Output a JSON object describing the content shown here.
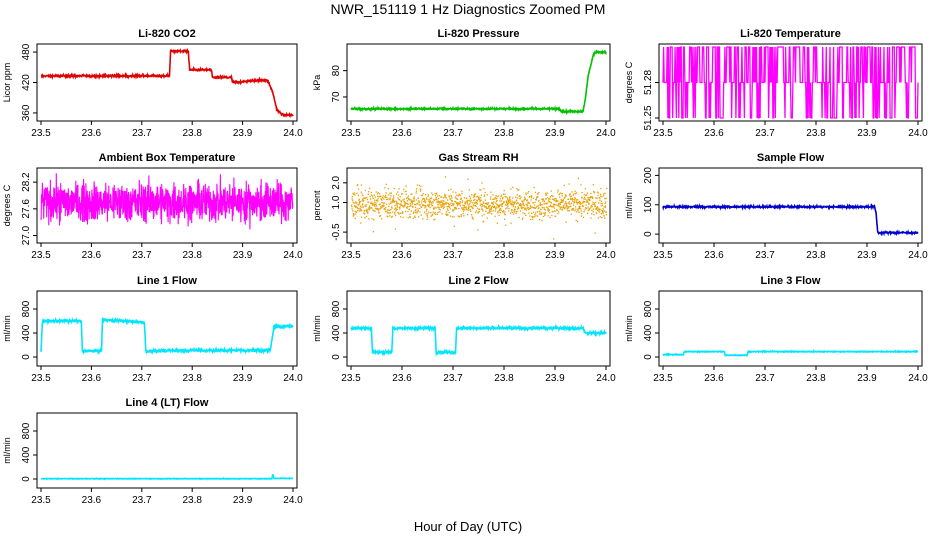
{
  "figure": {
    "title": "NWR_151119  1 Hz Diagnostics Zoomed PM",
    "xlabel": "Hour of Day (UTC)"
  },
  "chart_data": [
    {
      "type": "line",
      "title": "Li-820 CO2",
      "ylabel": "Licor ppm",
      "color": "#e00000",
      "xlim": [
        23.5,
        24.0
      ],
      "xticks": [
        "23.5",
        "23.6",
        "23.7",
        "23.8",
        "23.9",
        "24.0"
      ],
      "ylim": [
        350,
        490
      ],
      "yticks": [
        360,
        420,
        480
      ],
      "noise": 1,
      "x": [
        23.5,
        23.755,
        23.757,
        23.792,
        23.795,
        23.838,
        23.84,
        23.878,
        23.88,
        23.94,
        23.95,
        23.96,
        23.968,
        23.98,
        24.0
      ],
      "y": [
        433,
        433,
        482,
        482,
        445,
        445,
        430,
        430,
        420,
        425,
        424,
        400,
        366,
        356,
        356
      ]
    },
    {
      "type": "line",
      "title": "Li-820 Pressure",
      "ylabel": "kPa",
      "color": "#00c000",
      "xlim": [
        23.5,
        24.0
      ],
      "xticks": [
        "23.5",
        "23.6",
        "23.7",
        "23.8",
        "23.9",
        "24.0"
      ],
      "ylim": [
        62,
        89
      ],
      "yticks": [
        70,
        80
      ],
      "noise": 0.15,
      "x": [
        23.5,
        23.91,
        23.912,
        23.955,
        23.96,
        23.965,
        23.97,
        23.975,
        23.98,
        24.0
      ],
      "y": [
        65.5,
        65.5,
        64.5,
        64.5,
        70,
        78,
        82,
        86,
        87,
        87
      ]
    },
    {
      "type": "line",
      "title": "Li-820 Temperature",
      "ylabel": "degrees C",
      "color": "#ff00ff",
      "xlim": [
        23.5,
        24.0
      ],
      "xticks": [
        "23.5",
        "23.6",
        "23.7",
        "23.8",
        "23.9",
        "24.0"
      ],
      "ylim": [
        51.25,
        51.31
      ],
      "yticks": [
        51.25,
        51.28
      ],
      "style": "toggle",
      "levels": [
        51.25,
        51.28,
        51.31
      ]
    },
    {
      "type": "line",
      "title": "Ambient Box Temperature",
      "ylabel": "degrees C",
      "color": "#ff00ff",
      "xlim": [
        23.5,
        24.0
      ],
      "xticks": [
        "23.5",
        "23.6",
        "23.7",
        "23.8",
        "23.9",
        "24.0"
      ],
      "ylim": [
        26.9,
        28.45
      ],
      "yticks": [
        27.0,
        27.6,
        28.2
      ],
      "style": "noise",
      "center": 27.75,
      "spread": 0.22,
      "min": 26.95,
      "max": 28.4
    },
    {
      "type": "line",
      "title": "Gas Stream RH",
      "ylabel": "percent",
      "color": "#e8a000",
      "xlim": [
        23.5,
        24.0
      ],
      "xticks": [
        "23.5",
        "23.6",
        "23.7",
        "23.8",
        "23.9",
        "24.0"
      ],
      "ylim": [
        -0.9,
        2.6
      ],
      "yticks": [
        -0.5,
        1.0,
        2.0
      ],
      "ytick_labels": [
        "-0.5",
        "1.0",
        "2.0"
      ],
      "style": "dots",
      "center": 0.95,
      "spread": 0.35,
      "min": -0.9,
      "max": 2.4
    },
    {
      "type": "line",
      "title": "Sample Flow",
      "ylabel": "ml/min",
      "color": "#0000cc",
      "xlim": [
        23.5,
        24.0
      ],
      "xticks": [
        "23.5",
        "23.6",
        "23.7",
        "23.8",
        "23.9",
        "24.0"
      ],
      "ylim": [
        -20,
        215
      ],
      "yticks": [
        0,
        100,
        200
      ],
      "noise": 1.5,
      "x": [
        23.5,
        23.915,
        23.918,
        23.921,
        24.0
      ],
      "y": [
        93,
        93,
        70,
        5,
        5
      ]
    },
    {
      "type": "line",
      "title": "Line 1 Flow",
      "ylabel": "ml/min",
      "color": "#00e5ff",
      "xlim": [
        23.5,
        24.0
      ],
      "xticks": [
        "23.5",
        "23.6",
        "23.7",
        "23.8",
        "23.9",
        "24.0"
      ],
      "ylim": [
        -100,
        1050
      ],
      "yticks": [
        0,
        400,
        800
      ],
      "noise": 12,
      "x": [
        23.5,
        23.503,
        23.58,
        23.582,
        23.62,
        23.622,
        23.705,
        23.708,
        23.75,
        23.752,
        23.955,
        23.962,
        24.0
      ],
      "y": [
        100,
        600,
        600,
        100,
        100,
        620,
        580,
        100,
        100,
        110,
        110,
        500,
        520
      ]
    },
    {
      "type": "line",
      "title": "Line 2 Flow",
      "ylabel": "ml/min",
      "color": "#00e5ff",
      "xlim": [
        23.5,
        24.0
      ],
      "xticks": [
        "23.5",
        "23.6",
        "23.7",
        "23.8",
        "23.9",
        "24.0"
      ],
      "ylim": [
        -100,
        1050
      ],
      "yticks": [
        0,
        400,
        800
      ],
      "noise": 10,
      "x": [
        23.5,
        23.54,
        23.542,
        23.58,
        23.582,
        23.665,
        23.667,
        23.705,
        23.707,
        23.955,
        23.96,
        24.0
      ],
      "y": [
        480,
        480,
        80,
        80,
        480,
        480,
        80,
        80,
        480,
        480,
        400,
        400
      ]
    },
    {
      "type": "line",
      "title": "Line 3 Flow",
      "ylabel": "ml/min",
      "color": "#00e5ff",
      "xlim": [
        23.5,
        24.0
      ],
      "xticks": [
        "23.5",
        "23.6",
        "23.7",
        "23.8",
        "23.9",
        "24.0"
      ],
      "ylim": [
        -100,
        1050
      ],
      "yticks": [
        0,
        400,
        800
      ],
      "noise": 3,
      "x": [
        23.5,
        23.5,
        23.54,
        23.542,
        23.62,
        23.622,
        23.665,
        23.667,
        24.0
      ],
      "y": [
        60,
        40,
        40,
        90,
        90,
        30,
        30,
        90,
        90
      ]
    },
    {
      "type": "line",
      "title": "Line 4 (LT) Flow",
      "ylabel": "ml/min",
      "color": "#00e5ff",
      "xlim": [
        23.5,
        24.0
      ],
      "xticks": [
        "23.5",
        "23.6",
        "23.7",
        "23.8",
        "23.9",
        "24.0"
      ],
      "ylim": [
        -100,
        1050
      ],
      "yticks": [
        0,
        400,
        800
      ],
      "noise": 2,
      "x": [
        23.5,
        23.958,
        23.96,
        23.962,
        24.0
      ],
      "y": [
        5,
        5,
        80,
        10,
        10
      ]
    }
  ]
}
